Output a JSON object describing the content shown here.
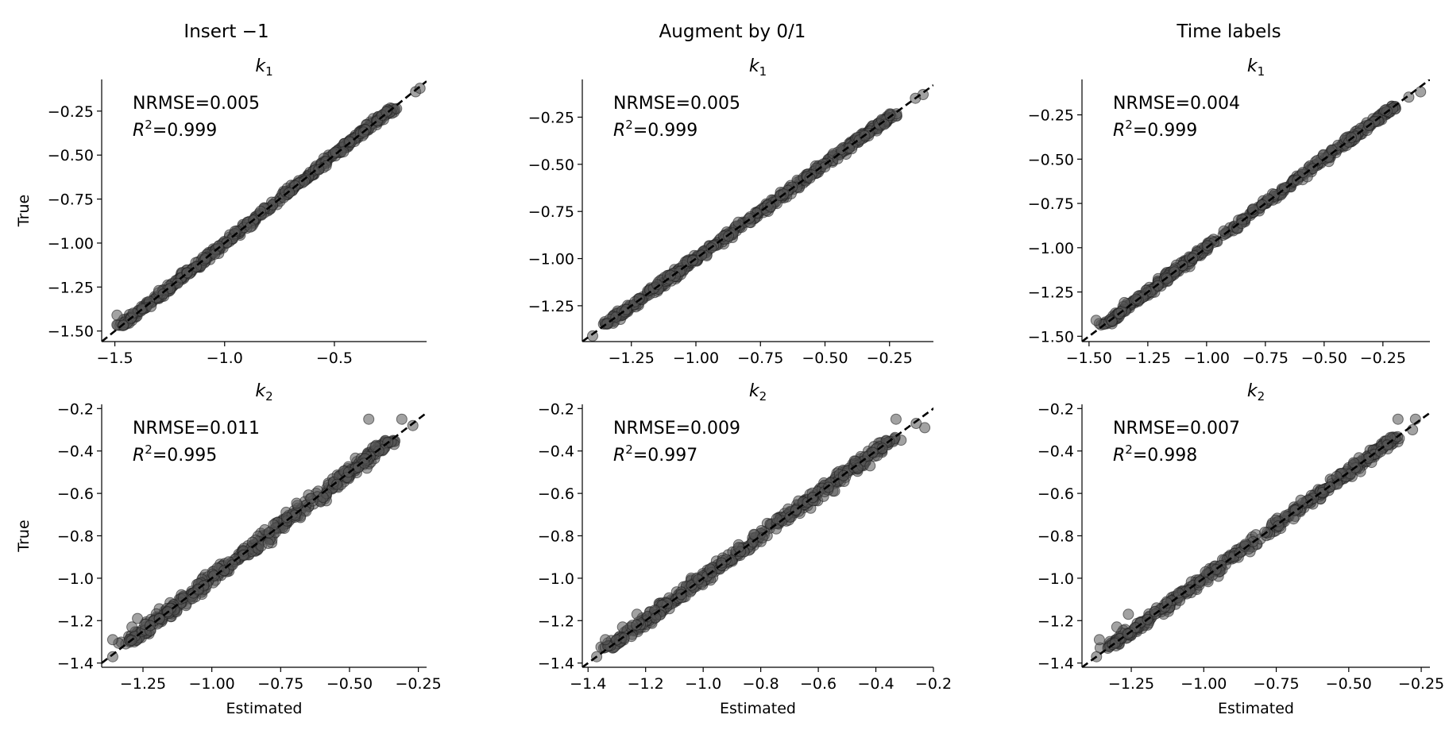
{
  "column_titles": [
    "Insert −1",
    "Augment by 0/1",
    "Time labels"
  ],
  "chart_data": [
    {
      "type": "scatter",
      "row": 0,
      "col": 0,
      "title": "k_1",
      "title_sub": "1",
      "nrmse": "NRMSE=0.005",
      "r2": "=0.999",
      "xlabel": "",
      "ylabel": "True",
      "xlim": [
        -1.56,
        -0.08
      ],
      "ylim": [
        -1.56,
        -0.07
      ],
      "xticks": [
        -1.5,
        -1.0,
        -0.5
      ],
      "xtick_labels": [
        "−1.5",
        "−1.0",
        "−0.5"
      ],
      "yticks": [
        -1.5,
        -1.25,
        -1.0,
        -0.75,
        -0.5,
        -0.25
      ],
      "ytick_labels": [
        "−1.50",
        "−1.25",
        "−1.00",
        "−0.75",
        "−0.50",
        "−0.25"
      ],
      "line_range": [
        -1.56,
        -0.08
      ],
      "spread": 0.012,
      "outliers": [
        [
          -1.49,
          -1.41
        ],
        [
          -1.3,
          -1.27
        ],
        [
          -1.28,
          -1.29
        ],
        [
          -0.13,
          -0.14
        ],
        [
          -0.11,
          -0.12
        ]
      ]
    },
    {
      "type": "scatter",
      "row": 0,
      "col": 1,
      "title": "k_1",
      "title_sub": "1",
      "nrmse": "NRMSE=0.005",
      "r2": "=0.999",
      "xlabel": "",
      "ylabel": "",
      "xlim": [
        -1.44,
        -0.08
      ],
      "ylim": [
        -1.44,
        -0.05
      ],
      "xticks": [
        -1.25,
        -1.0,
        -0.75,
        -0.5,
        -0.25
      ],
      "xtick_labels": [
        "−1.25",
        "−1.00",
        "−0.75",
        "−0.50",
        "−0.25"
      ],
      "yticks": [
        -1.25,
        -1.0,
        -0.75,
        -0.5,
        -0.25
      ],
      "ytick_labels": [
        "−1.25",
        "−1.00",
        "−0.75",
        "−0.50",
        "−0.25"
      ],
      "line_range": [
        -1.44,
        -0.08
      ],
      "spread": 0.012,
      "outliers": [
        [
          -1.4,
          -1.41
        ],
        [
          -1.31,
          -1.31
        ],
        [
          -1.27,
          -1.27
        ],
        [
          -0.15,
          -0.15
        ],
        [
          -0.12,
          -0.13
        ]
      ]
    },
    {
      "type": "scatter",
      "row": 0,
      "col": 2,
      "title": "k_1",
      "title_sub": "1",
      "nrmse": "NRMSE=0.004",
      "r2": "=0.999",
      "xlabel": "",
      "ylabel": "",
      "xlim": [
        -1.53,
        -0.05
      ],
      "ylim": [
        -1.53,
        -0.05
      ],
      "xticks": [
        -1.5,
        -1.25,
        -1.0,
        -0.75,
        -0.5,
        -0.25
      ],
      "xtick_labels": [
        "−1.50",
        "−1.25",
        "−1.00",
        "−0.75",
        "−0.50",
        "−0.25"
      ],
      "yticks": [
        -1.5,
        -1.25,
        -1.0,
        -0.75,
        -0.5,
        -0.25
      ],
      "ytick_labels": [
        "−1.50",
        "−1.25",
        "−1.00",
        "−0.75",
        "−0.50",
        "−0.25"
      ],
      "line_range": [
        -1.53,
        -0.05
      ],
      "spread": 0.012,
      "outliers": [
        [
          -1.47,
          -1.41
        ],
        [
          -1.35,
          -1.31
        ],
        [
          -1.3,
          -1.29
        ],
        [
          -0.14,
          -0.15
        ],
        [
          -0.09,
          -0.12
        ]
      ]
    },
    {
      "type": "scatter",
      "row": 1,
      "col": 0,
      "title": "k_2",
      "title_sub": "2",
      "nrmse": "NRMSE=0.011",
      "r2": "=0.995",
      "xlabel": "Estimated",
      "ylabel": "True",
      "xlim": [
        -1.4,
        -0.22
      ],
      "ylim": [
        -1.42,
        -0.18
      ],
      "xticks": [
        -1.25,
        -1.0,
        -0.75,
        -0.5,
        -0.25
      ],
      "xtick_labels": [
        "−1.25",
        "−1.00",
        "−0.75",
        "−0.50",
        "−0.25"
      ],
      "yticks": [
        -1.4,
        -1.2,
        -1.0,
        -0.8,
        -0.6,
        -0.4,
        -0.2
      ],
      "ytick_labels": [
        "−1.4",
        "−1.2",
        "−1.0",
        "−0.8",
        "−0.6",
        "−0.4",
        "−0.2"
      ],
      "line_range": [
        -1.4,
        -0.2
      ],
      "spread": 0.018,
      "outliers": [
        [
          -1.36,
          -1.37
        ],
        [
          -1.36,
          -1.29
        ],
        [
          -1.29,
          -1.23
        ],
        [
          -1.27,
          -1.19
        ],
        [
          -0.43,
          -0.25
        ],
        [
          -0.31,
          -0.25
        ],
        [
          -0.27,
          -0.28
        ]
      ]
    },
    {
      "type": "scatter",
      "row": 1,
      "col": 1,
      "title": "k_2",
      "title_sub": "2",
      "nrmse": "NRMSE=0.009",
      "r2": "=0.997",
      "xlabel": "Estimated",
      "ylabel": "",
      "xlim": [
        -1.42,
        -0.2
      ],
      "ylim": [
        -1.42,
        -0.18
      ],
      "xticks": [
        -1.4,
        -1.2,
        -1.0,
        -0.8,
        -0.6,
        -0.4,
        -0.2
      ],
      "xtick_labels": [
        "−1.4",
        "−1.2",
        "−1.0",
        "−0.8",
        "−0.6",
        "−0.4",
        "−0.2"
      ],
      "yticks": [
        -1.4,
        -1.2,
        -1.0,
        -0.8,
        -0.6,
        -0.4,
        -0.2
      ],
      "ytick_labels": [
        "−1.4",
        "−1.2",
        "−1.0",
        "−0.8",
        "−0.6",
        "−0.4",
        "−0.2"
      ],
      "line_range": [
        -1.42,
        -0.18
      ],
      "spread": 0.016,
      "outliers": [
        [
          -1.37,
          -1.37
        ],
        [
          -1.34,
          -1.29
        ],
        [
          -1.28,
          -1.23
        ],
        [
          -1.23,
          -1.17
        ],
        [
          -0.42,
          -0.47
        ],
        [
          -0.33,
          -0.25
        ],
        [
          -0.23,
          -0.29
        ],
        [
          -0.26,
          -0.27
        ]
      ]
    },
    {
      "type": "scatter",
      "row": 1,
      "col": 2,
      "title": "k_2",
      "title_sub": "2",
      "nrmse": "NRMSE=0.007",
      "r2": "=0.998",
      "xlabel": "Estimated",
      "ylabel": "",
      "xlim": [
        -1.42,
        -0.22
      ],
      "ylim": [
        -1.42,
        -0.18
      ],
      "xticks": [
        -1.25,
        -1.0,
        -0.75,
        -0.5,
        -0.25
      ],
      "xtick_labels": [
        "−1.25",
        "−1.00",
        "−0.75",
        "−0.50",
        "−0.25"
      ],
      "yticks": [
        -1.4,
        -1.2,
        -1.0,
        -0.8,
        -0.6,
        -0.4,
        -0.2
      ],
      "ytick_labels": [
        "−1.4",
        "−1.2",
        "−1.0",
        "−0.8",
        "−0.6",
        "−0.4",
        "−0.2"
      ],
      "line_range": [
        -1.42,
        -0.18
      ],
      "spread": 0.014,
      "outliers": [
        [
          -1.37,
          -1.37
        ],
        [
          -1.36,
          -1.29
        ],
        [
          -1.3,
          -1.23
        ],
        [
          -1.26,
          -1.17
        ],
        [
          -0.33,
          -0.25
        ],
        [
          -0.27,
          -0.25
        ],
        [
          -0.28,
          -0.3
        ]
      ]
    }
  ]
}
